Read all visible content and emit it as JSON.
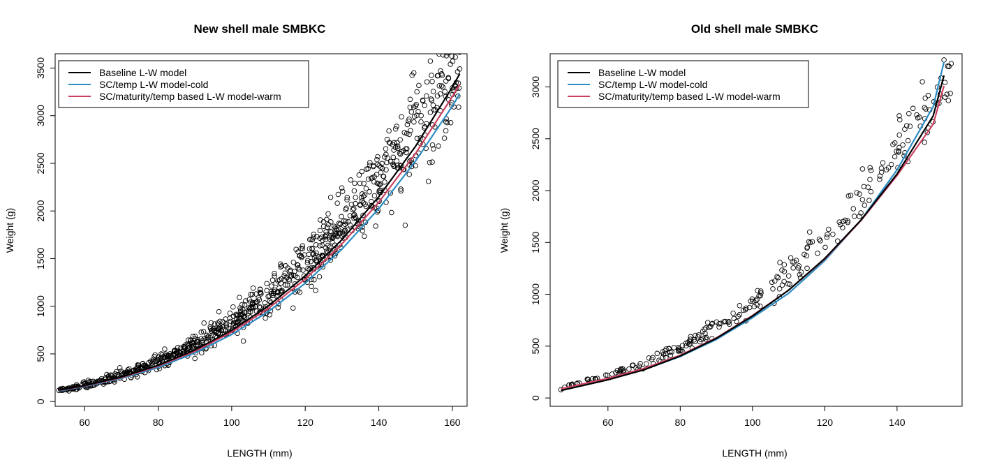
{
  "chart_data": [
    {
      "type": "scatter",
      "title": "New shell male SMBKC",
      "xlabel": "LENGTH (mm)",
      "ylabel": "Weight (g)",
      "xlim": [
        52,
        164
      ],
      "ylim": [
        -50,
        3650
      ],
      "xticks": [
        60,
        80,
        100,
        120,
        140,
        160
      ],
      "yticks": [
        0,
        500,
        1000,
        1500,
        2000,
        2500,
        3000,
        3500
      ],
      "legend_position": "top-left",
      "points": {
        "length_range": [
          53,
          162
        ],
        "count": 900,
        "model": {
          "a": 0.000628,
          "b": 3.06
        },
        "spread_fraction": 0.09,
        "outliers": [
          [
            150,
            3100
          ],
          [
            149.5,
            3090
          ],
          [
            152,
            2700
          ],
          [
            162,
            3490
          ],
          [
            155,
            3060
          ],
          [
            146,
            2210
          ]
        ]
      },
      "series": [
        {
          "name": "Baseline L-W model",
          "color": "#000000",
          "x": [
            53,
            60,
            70,
            80,
            90,
            100,
            110,
            120,
            130,
            140,
            150,
            160,
            162
          ],
          "y": [
            120,
            167,
            257,
            380,
            541,
            747,
            1004,
            1320,
            1700,
            2150,
            2680,
            3300,
            3440
          ]
        },
        {
          "name": "SC/temp L-W model-cold",
          "color": "#2B8CC4",
          "x": [
            53,
            60,
            70,
            80,
            90,
            100,
            110,
            120,
            130,
            140,
            150,
            160,
            162
          ],
          "y": [
            110,
            158,
            242,
            358,
            510,
            703,
            945,
            1242,
            1600,
            2025,
            2525,
            3100,
            3230
          ]
        },
        {
          "name": "SC/maturity/temp based L-W model-warm",
          "color": "#CC4060",
          "x": [
            53,
            60,
            70,
            80,
            90,
            100,
            110,
            120,
            130,
            140,
            150,
            160,
            162
          ],
          "y": [
            116,
            163,
            251,
            371,
            528,
            728,
            978,
            1285,
            1655,
            2092,
            2605,
            3200,
            3330
          ]
        }
      ]
    },
    {
      "type": "scatter",
      "title": "Old shell male SMBKC",
      "xlabel": "LENGTH (mm)",
      "ylabel": "Weight (g)",
      "xlim": [
        44,
        158
      ],
      "ylim": [
        -80,
        3320
      ],
      "xticks": [
        60,
        80,
        100,
        120,
        140
      ],
      "yticks": [
        0,
        500,
        1000,
        1500,
        2000,
        2500,
        3000
      ],
      "legend_position": "top-left",
      "points": {
        "length_range": [
          47,
          155
        ],
        "count": 260,
        "model": {
          "a": 0.00213,
          "b": 2.82
        },
        "spread_fraction": 0.06,
        "outliers": [
          [
            47,
            80
          ],
          [
            153,
            3260
          ],
          [
            154,
            3200
          ],
          [
            152,
            2930
          ],
          [
            143,
            2280
          ],
          [
            147,
            3050
          ]
        ]
      },
      "series": [
        {
          "name": "Baseline L-W model",
          "color": "#000000",
          "x": [
            47,
            60,
            70,
            80,
            90,
            100,
            110,
            120,
            130,
            140,
            150,
            153
          ],
          "y": [
            72,
            175,
            272,
            405,
            575,
            790,
            1040,
            1345,
            1715,
            2160,
            2720,
            3110
          ]
        },
        {
          "name": "SC/temp L-W model-cold",
          "color": "#2B8CC4",
          "x": [
            47,
            60,
            70,
            80,
            90,
            100,
            110,
            120,
            130,
            140,
            150,
            153
          ],
          "y": [
            80,
            180,
            275,
            400,
            565,
            775,
            1010,
            1325,
            1715,
            2200,
            2810,
            3240
          ]
        },
        {
          "name": "SC/maturity/temp based L-W model-warm",
          "color": "#CC4060",
          "x": [
            47,
            60,
            70,
            80,
            90,
            100,
            110,
            120,
            130,
            140,
            150,
            153
          ],
          "y": [
            88,
            190,
            285,
            412,
            580,
            795,
            1040,
            1340,
            1710,
            2145,
            2640,
            3010
          ]
        }
      ]
    }
  ]
}
